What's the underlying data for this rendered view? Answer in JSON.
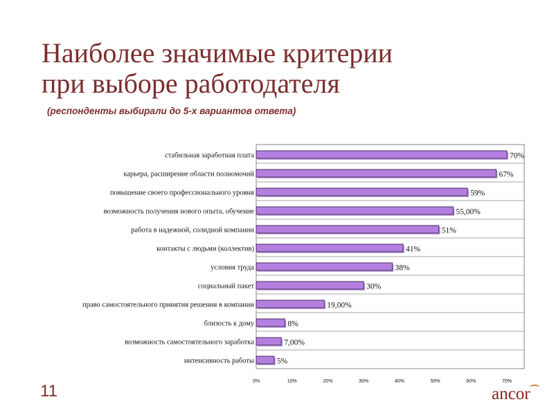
{
  "slide": {
    "title_line1": "Наиболее значимые критерии",
    "title_line2": "при выборе работодателя",
    "subtitle": "(респонденты выбирали до 5-х вариантов ответа)",
    "page_number": "11",
    "logo_text": "ancor"
  },
  "chart_data": {
    "type": "bar",
    "orientation": "horizontal",
    "categories": [
      "стабильная заработная плата",
      "карьера, расширение области полномочий",
      "повышение своего профессионального уровня",
      "возможность получения нового опыта, обучение",
      "работа в надежной, солидной компании",
      "контакты с людьми (коллектив)",
      "условия труда",
      "социальный пакет",
      "право самостоятельного принятия решения в компании",
      "близость к дому",
      "возможность самостоятельного заработка",
      "интенсивность работы"
    ],
    "values": [
      70,
      67,
      59,
      55,
      51,
      41,
      38,
      30,
      19,
      8,
      7,
      5
    ],
    "value_labels": [
      "70%",
      "67%",
      "59%",
      "55,00%",
      "51%",
      "41%",
      "38%",
      "30%",
      "19,00%",
      "8%",
      "7,00%",
      "5%"
    ],
    "x_ticks": [
      "0%",
      "10%",
      "20%",
      "30%",
      "40%",
      "50%",
      "60%",
      "70%"
    ],
    "xlim": [
      0,
      70
    ],
    "grid": "horizontal-row-lines",
    "legend": "none",
    "colors": {
      "bar": "#b47fe0",
      "bar_outline": "#3a2350",
      "bar_shadow": "#8c59c0",
      "text": "#111111",
      "title": "#7b2c2c"
    }
  }
}
